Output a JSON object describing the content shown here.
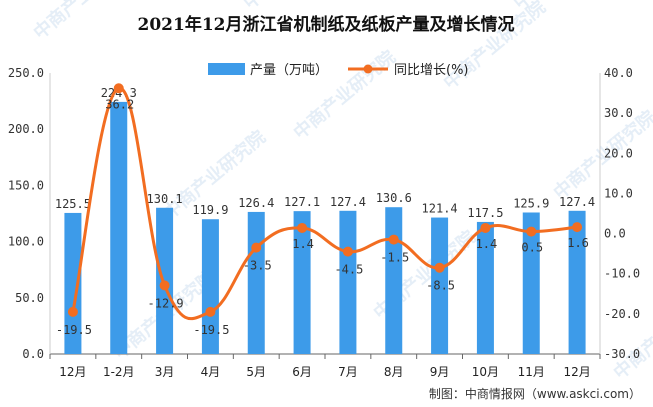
{
  "chart_data": {
    "type": "bar+line",
    "title": "2021年12月浙江省机制纸及纸板产量及增长情况",
    "categories": [
      "12月",
      "1-2月",
      "3月",
      "4月",
      "5月",
      "6月",
      "7月",
      "8月",
      "9月",
      "10月",
      "11月",
      "12月"
    ],
    "series": [
      {
        "name": "产量（万吨）",
        "type": "bar",
        "axis": "left",
        "color": "#3d9be9",
        "values": [
          125.5,
          224.3,
          130.1,
          119.9,
          126.4,
          127.1,
          127.4,
          130.6,
          121.4,
          117.5,
          125.9,
          127.4
        ],
        "labels": [
          "125.5",
          "224.3",
          "130.1",
          "119.9",
          "126.4",
          "127.1",
          "127.4",
          "130.6",
          "121.4",
          "117.5",
          "125.9",
          "127.4"
        ]
      },
      {
        "name": "同比增长(%)",
        "type": "line",
        "axis": "right",
        "color": "#f26d21",
        "values": [
          -19.5,
          36.2,
          -12.9,
          -19.5,
          -3.5,
          1.4,
          -4.5,
          -1.5,
          -8.5,
          1.4,
          0.5,
          1.6
        ],
        "labels": [
          "-19.5",
          "36.2",
          "-12.9",
          "-19.5",
          "-3.5",
          "1.4",
          "-4.5",
          "-1.5",
          "-8.5",
          "1.4",
          "0.5",
          "1.6"
        ]
      }
    ],
    "y_left": {
      "ylim": [
        0,
        250
      ],
      "ticks": [
        "0.0",
        "50.0",
        "100.0",
        "150.0",
        "200.0",
        "250.0"
      ]
    },
    "y_right": {
      "ylim": [
        -30,
        40
      ],
      "ticks": [
        "-30.0",
        "-20.0",
        "-10.0",
        "0.0",
        "10.0",
        "20.0",
        "30.0",
        "40.0"
      ]
    },
    "grid": false,
    "legend_position": "top-center"
  },
  "source": "制图：中商情报网（www.askci.com）",
  "watermark": "中商产业研究院"
}
